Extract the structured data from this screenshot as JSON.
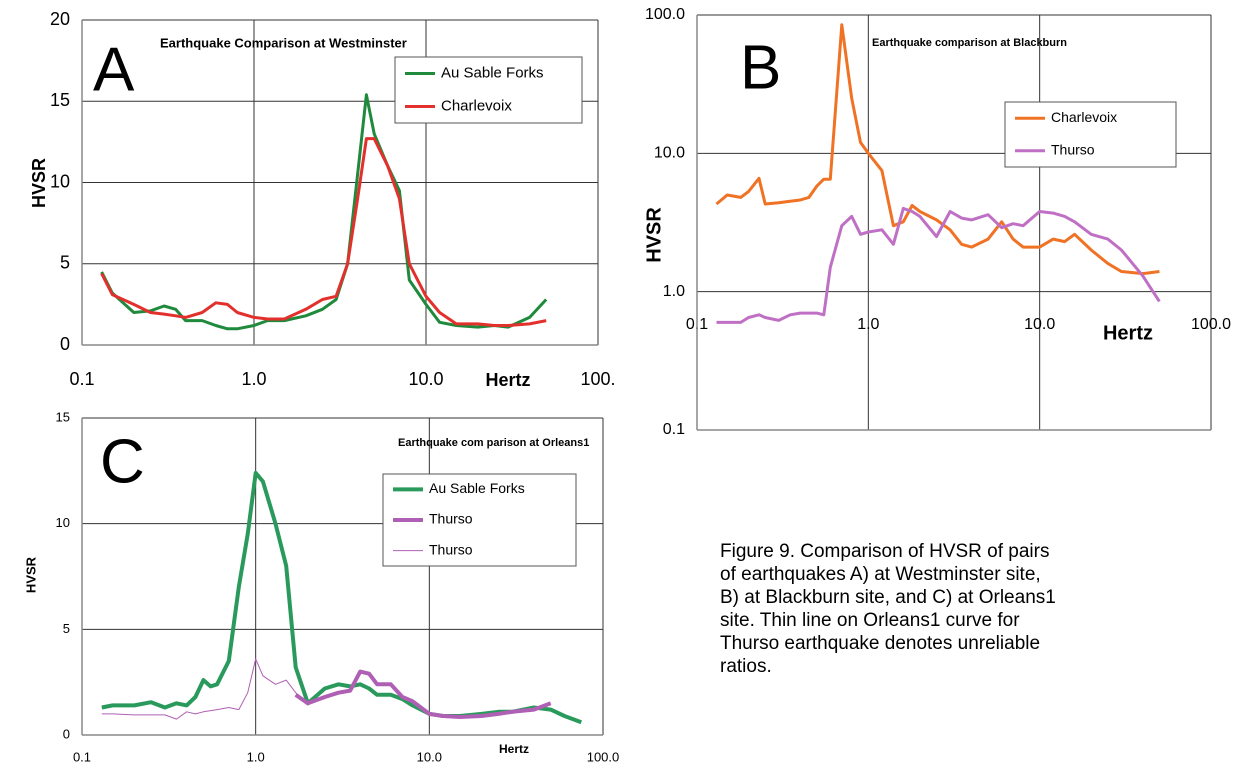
{
  "chart_data": [
    {
      "type": "line",
      "panel_label": "A",
      "title": "Earthquake Comparison at Westminster",
      "xlabel": "Hertz",
      "ylabel": "HVSR",
      "xscale": "log",
      "yscale": "linear",
      "grid": true,
      "legend": "top-right",
      "xlim": [
        0.1,
        100
      ],
      "xticks": [
        0.1,
        {
          "value": 1,
          "label": "1.0"
        },
        {
          "value": 10,
          "label": "10.0"
        },
        {
          "value": 100,
          "label": "100."
        }
      ],
      "ylim": [
        0,
        20
      ],
      "yticks": [
        0,
        5,
        10,
        15,
        20
      ],
      "series": [
        {
          "name": "Au Sable Forks",
          "color": "#1f8a3c",
          "linewidth": 3,
          "x": [
            0.13,
            0.15,
            0.2,
            0.25,
            0.3,
            0.35,
            0.4,
            0.5,
            0.6,
            0.7,
            0.8,
            1.0,
            1.2,
            1.5,
            2.0,
            2.5,
            3.0,
            3.5,
            4.0,
            4.5,
            5.0,
            6.0,
            7.0,
            8.0,
            10,
            12,
            15,
            20,
            25,
            30,
            40,
            50
          ],
          "values": [
            4.5,
            3.2,
            2.0,
            2.1,
            2.4,
            2.2,
            1.5,
            1.5,
            1.2,
            1.0,
            1.0,
            1.2,
            1.5,
            1.5,
            1.8,
            2.2,
            2.8,
            5.0,
            10.5,
            15.4,
            13.0,
            11.0,
            9.5,
            4.0,
            2.5,
            1.4,
            1.2,
            1.1,
            1.2,
            1.1,
            1.7,
            2.8
          ]
        },
        {
          "name": "Charlevoix",
          "color": "#e2302c",
          "linewidth": 3,
          "x": [
            0.13,
            0.15,
            0.2,
            0.25,
            0.3,
            0.35,
            0.4,
            0.5,
            0.6,
            0.7,
            0.8,
            1.0,
            1.2,
            1.5,
            2.0,
            2.5,
            3.0,
            3.5,
            4.0,
            4.5,
            5.0,
            6.0,
            7.0,
            8.0,
            10,
            12,
            15,
            20,
            25,
            30,
            40,
            50
          ],
          "values": [
            4.4,
            3.1,
            2.5,
            2.0,
            1.9,
            1.8,
            1.7,
            2.0,
            2.6,
            2.5,
            2.0,
            1.7,
            1.6,
            1.6,
            2.2,
            2.8,
            3.0,
            5.0,
            9.0,
            12.7,
            12.7,
            11.0,
            9.0,
            5.0,
            3.0,
            2.0,
            1.3,
            1.3,
            1.2,
            1.2,
            1.3,
            1.5
          ]
        }
      ]
    },
    {
      "type": "line",
      "panel_label": "B",
      "title": "Earthquake comparison at Blackburn",
      "xlabel": "Hertz",
      "ylabel": "HVSR",
      "xscale": "log",
      "yscale": "log",
      "grid": true,
      "legend": "right",
      "xlim": [
        0.1,
        100
      ],
      "xticks": [
        0.1,
        {
          "value": 1,
          "label": "1.0"
        },
        {
          "value": 10,
          "label": "10.0"
        },
        {
          "value": 100,
          "label": "100.0"
        }
      ],
      "ylim": [
        0.1,
        100
      ],
      "yticks": [
        0.1,
        {
          "value": 1,
          "label": "1.0"
        },
        {
          "value": 10,
          "label": "10.0"
        },
        {
          "value": 100,
          "label": "100.0"
        }
      ],
      "series": [
        {
          "name": "Charlevoix",
          "color": "#f07224",
          "linewidth": 3,
          "x": [
            0.13,
            0.15,
            0.18,
            0.2,
            0.23,
            0.25,
            0.3,
            0.35,
            0.4,
            0.45,
            0.5,
            0.55,
            0.6,
            0.7,
            0.8,
            0.9,
            1.0,
            1.2,
            1.4,
            1.6,
            1.8,
            2.0,
            2.5,
            3.0,
            3.5,
            4.0,
            5.0,
            6.0,
            7.0,
            8.0,
            10,
            12,
            14,
            16,
            20,
            25,
            30,
            40,
            50
          ],
          "values": [
            4.3,
            5.0,
            4.8,
            5.3,
            6.6,
            4.3,
            4.4,
            4.5,
            4.6,
            4.8,
            5.8,
            6.5,
            6.5,
            85,
            25,
            12,
            10,
            7.5,
            3.0,
            3.2,
            4.2,
            3.8,
            3.3,
            2.8,
            2.2,
            2.1,
            2.4,
            3.2,
            2.4,
            2.1,
            2.1,
            2.4,
            2.3,
            2.6,
            2.0,
            1.6,
            1.4,
            1.35,
            1.4
          ]
        },
        {
          "name": "Thurso",
          "color": "#c070c4",
          "linewidth": 3,
          "x": [
            0.13,
            0.15,
            0.18,
            0.2,
            0.23,
            0.25,
            0.3,
            0.35,
            0.4,
            0.45,
            0.5,
            0.55,
            0.6,
            0.7,
            0.8,
            0.9,
            1.0,
            1.2,
            1.4,
            1.6,
            1.8,
            2.0,
            2.5,
            3.0,
            3.5,
            4.0,
            5.0,
            6.0,
            7.0,
            8.0,
            10,
            12,
            14,
            16,
            20,
            25,
            30,
            40,
            50
          ],
          "values": [
            0.6,
            0.6,
            0.6,
            0.65,
            0.68,
            0.65,
            0.62,
            0.68,
            0.7,
            0.7,
            0.7,
            0.68,
            1.5,
            3.0,
            3.5,
            2.6,
            2.7,
            2.8,
            2.2,
            4.0,
            3.8,
            3.5,
            2.5,
            3.8,
            3.4,
            3.3,
            3.6,
            2.9,
            3.1,
            3.0,
            3.8,
            3.7,
            3.5,
            3.2,
            2.6,
            2.4,
            2.0,
            1.3,
            0.85
          ]
        }
      ]
    },
    {
      "type": "line",
      "panel_label": "C",
      "title": "Earthquake com parison at Orleans1",
      "xlabel": "Hertz",
      "ylabel": "HVSR",
      "xscale": "log",
      "yscale": "linear",
      "grid": true,
      "legend": "top-right",
      "xlim": [
        0.1,
        100
      ],
      "xticks": [
        0.1,
        {
          "value": 1,
          "label": "1.0"
        },
        {
          "value": 10,
          "label": "10.0"
        },
        {
          "value": 100,
          "label": "100.0"
        }
      ],
      "ylim": [
        0,
        15
      ],
      "yticks": [
        0,
        5,
        10,
        15
      ],
      "series": [
        {
          "name": "Au Sable Forks",
          "color": "#2a9a5c",
          "linewidth": 4,
          "x": [
            0.13,
            0.15,
            0.2,
            0.25,
            0.3,
            0.35,
            0.4,
            0.45,
            0.5,
            0.55,
            0.6,
            0.7,
            0.8,
            0.9,
            1.0,
            1.1,
            1.3,
            1.5,
            1.7,
            2.0,
            2.5,
            3.0,
            3.5,
            4.0,
            4.5,
            5.0,
            6.0,
            7.0,
            8.0,
            10,
            12,
            15,
            20,
            25,
            30,
            40,
            50,
            60,
            75
          ],
          "values": [
            1.3,
            1.4,
            1.4,
            1.55,
            1.3,
            1.5,
            1.4,
            1.8,
            2.6,
            2.3,
            2.4,
            3.5,
            7.0,
            9.5,
            12.4,
            12.0,
            10.0,
            8.0,
            3.2,
            1.5,
            2.2,
            2.4,
            2.3,
            2.4,
            2.2,
            1.9,
            1.9,
            1.7,
            1.4,
            1.0,
            0.9,
            0.9,
            1.0,
            1.1,
            1.1,
            1.3,
            1.2,
            0.9,
            0.6
          ]
        },
        {
          "name": "Thurso",
          "color": "#b060b4",
          "linewidth": 4,
          "x": [
            1.7,
            2.0,
            2.5,
            3.0,
            3.5,
            4.0,
            4.5,
            5.0,
            6.0,
            7.0,
            8.0,
            10,
            12,
            15,
            20,
            25,
            30,
            40,
            50
          ],
          "values": [
            1.9,
            1.5,
            1.8,
            2.0,
            2.1,
            3.0,
            2.9,
            2.4,
            2.4,
            1.8,
            1.6,
            1.0,
            0.9,
            0.85,
            0.9,
            1.0,
            1.1,
            1.2,
            1.5
          ]
        },
        {
          "name": "Thurso",
          "color": "#b060b4",
          "linewidth": 1,
          "x": [
            0.13,
            0.15,
            0.2,
            0.25,
            0.3,
            0.35,
            0.4,
            0.45,
            0.5,
            0.6,
            0.7,
            0.8,
            0.9,
            1.0,
            1.1,
            1.3,
            1.5,
            1.7,
            2.0
          ],
          "values": [
            1.0,
            1.0,
            0.95,
            0.95,
            0.95,
            0.75,
            1.1,
            1.0,
            1.1,
            1.2,
            1.3,
            1.2,
            2.0,
            3.6,
            2.8,
            2.4,
            2.6,
            2.0,
            1.5
          ]
        }
      ]
    }
  ],
  "caption": [
    "Figure 9.  Comparison of HVSR of pairs",
    "of earthquakes  A) at Westminster site,",
    "B) at Blackburn site, and C) at Orleans1",
    "site.  Thin line on Orleans1 curve for",
    "Thurso earthquake denotes unreliable",
    "ratios."
  ]
}
